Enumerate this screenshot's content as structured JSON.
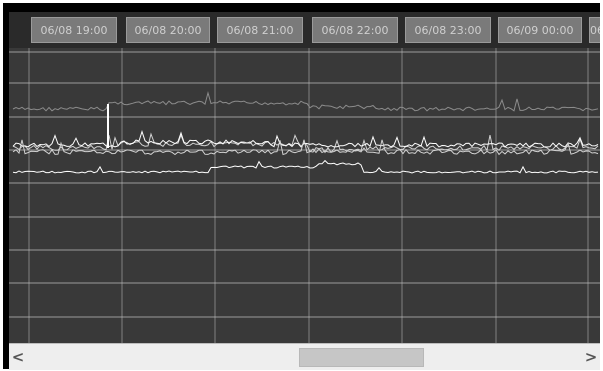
{
  "timeline": {
    "time_labels": [
      "06/08 19:00",
      "06/08 20:00",
      "06/08 21:00",
      "06/08 22:00",
      "06/08 23:00",
      "06/09 00:00",
      "06"
    ]
  },
  "scrollbar": {
    "left_arrow": "<",
    "right_arrow": ">",
    "thumb_start_fraction": 0.49,
    "thumb_length_fraction": 0.225
  },
  "colors": {
    "plot_background": "#393939",
    "grid": "#bdbdbd",
    "header_tick": "#7a7a7a",
    "trace_bright": "#ffffff",
    "trace_mid": "#d2d2d2",
    "trace_dim": "#8c8c8c"
  }
}
